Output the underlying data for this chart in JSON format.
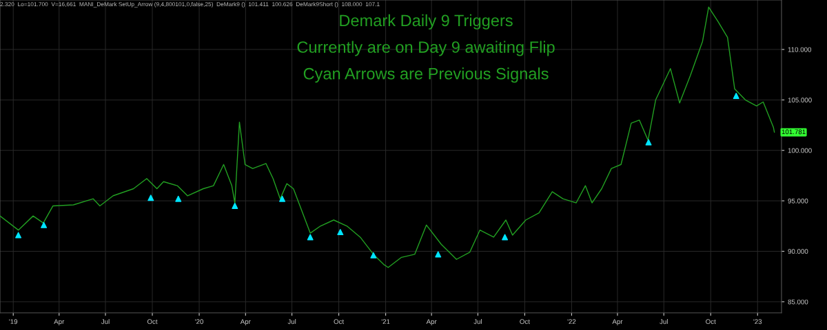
{
  "chart_data": {
    "type": "line",
    "title": "Demark Daily 9 Triggers",
    "annotations": [
      "Currently are on Day 9 awaiting Flip",
      "Cyan Arrows are Previous Signals",
      "2.320  Lo=101.700  V=16,661  MANI_DeMark SetUp_Arrow (9,4,800101,0,false,25)  DeMark9 ()  101.411  100.626  DeMark9Short ()  108.000  107.1",
      {
        "text": "101.781",
        "x": "2023-02-03",
        "y": 101.781
      }
    ],
    "series": [
      {
        "color": "#22a022",
        "x": [
          "2018-12-06",
          "2019-01-11",
          "2019-02-09",
          "2019-03-01",
          "2019-03-20",
          "2019-04-29",
          "2019-06-07",
          "2019-06-20",
          "2019-07-16",
          "2019-08-25",
          "2019-09-20",
          "2019-10-10",
          "2019-10-23",
          "2019-11-19",
          "2019-12-09",
          "2020-01-09",
          "2020-01-29",
          "2020-02-18",
          "2020-03-05",
          "2020-03-11",
          "2020-03-20",
          "2020-03-31",
          "2020-04-15",
          "2020-05-11",
          "2020-05-25",
          "2020-06-08",
          "2020-06-21",
          "2020-07-04",
          "2020-08-06",
          "2020-08-26",
          "2020-09-21",
          "2020-10-17",
          "2020-11-12",
          "2020-12-08",
          "2020-12-28",
          "2021-01-06",
          "2021-02-01",
          "2021-02-27",
          "2021-03-22",
          "2021-04-20",
          "2021-05-20",
          "2021-06-15",
          "2021-07-05",
          "2021-08-01",
          "2021-08-25",
          "2021-09-07",
          "2021-10-03",
          "2021-10-29",
          "2021-11-24",
          "2021-12-15",
          "2022-01-10",
          "2022-01-28",
          "2022-02-10",
          "2022-03-01",
          "2022-03-20",
          "2022-04-08",
          "2022-04-28",
          "2022-05-14",
          "2022-05-31",
          "2022-06-15",
          "2022-07-14",
          "2022-08-01",
          "2022-08-22",
          "2022-09-15",
          "2022-09-27",
          "2022-10-15",
          "2022-11-03",
          "2022-11-17",
          "2022-12-08",
          "2022-12-30",
          "2023-01-12",
          "2023-02-01",
          "2023-02-03"
        ],
        "values": [
          93.5,
          92.1,
          93.5,
          92.8,
          94.5,
          94.6,
          95.2,
          94.5,
          95.5,
          96.2,
          97.2,
          96.2,
          96.9,
          96.5,
          95.5,
          96.2,
          96.5,
          98.6,
          96.5,
          94.8,
          102.8,
          98.6,
          98.2,
          98.7,
          97.2,
          95.2,
          96.7,
          96.2,
          91.8,
          92.5,
          93.1,
          92.5,
          91.4,
          89.7,
          88.7,
          88.4,
          89.4,
          89.7,
          92.6,
          90.7,
          89.2,
          89.9,
          92.1,
          91.4,
          93.1,
          91.6,
          93.1,
          93.8,
          95.9,
          95.2,
          94.8,
          96.5,
          94.8,
          96.2,
          98.2,
          98.6,
          102.7,
          103.0,
          101.0,
          105.0,
          108.1,
          104.7,
          107.4,
          110.8,
          114.2,
          112.8,
          111.2,
          106.1,
          105.0,
          104.4,
          104.8,
          102.3,
          101.8
        ]
      },
      {
        "type": "scatter",
        "color": "#00e5ff",
        "marker": "triangle",
        "x": [
          "2019-01-11",
          "2019-03-02",
          "2019-09-28",
          "2019-11-21",
          "2020-03-11",
          "2020-06-12",
          "2020-08-06",
          "2020-10-04",
          "2020-12-08",
          "2021-04-14",
          "2021-08-23",
          "2022-06-01",
          "2022-11-20"
        ],
        "values": [
          91.6,
          92.6,
          95.3,
          95.2,
          94.5,
          95.2,
          91.4,
          91.9,
          89.6,
          89.7,
          91.4,
          100.8,
          105.4
        ]
      }
    ],
    "xlim": [
      "2018-12-06",
      "2023-02-17"
    ],
    "xticks": [
      {
        "value": "2019-01-01",
        "label": "'19"
      },
      {
        "value": "2019-04-01",
        "label": "Apr"
      },
      {
        "value": "2019-07-01",
        "label": "Jul"
      },
      {
        "value": "2019-10-01",
        "label": "Oct"
      },
      {
        "value": "2020-01-01",
        "label": "'20"
      },
      {
        "value": "2020-04-01",
        "label": "Apr"
      },
      {
        "value": "2020-07-01",
        "label": "Jul"
      },
      {
        "value": "2020-10-01",
        "label": "Oct"
      },
      {
        "value": "2021-01-01",
        "label": "'21"
      },
      {
        "value": "2021-04-01",
        "label": "Apr"
      },
      {
        "value": "2021-07-01",
        "label": "Jul"
      },
      {
        "value": "2021-10-01",
        "label": "Oct"
      },
      {
        "value": "2022-01-01",
        "label": "'22"
      },
      {
        "value": "2022-04-01",
        "label": "Apr"
      },
      {
        "value": "2022-07-01",
        "label": "Jul"
      },
      {
        "value": "2022-10-01",
        "label": "Oct"
      },
      {
        "value": "2023-01-01",
        "label": "'23"
      }
    ],
    "ylim": [
      83.9,
      114.9
    ],
    "yticks": [
      {
        "value": 85,
        "label": "85.000"
      },
      {
        "value": 90,
        "label": "90.000"
      },
      {
        "value": 95,
        "label": "95.000"
      },
      {
        "value": 100,
        "label": "100.000"
      },
      {
        "value": 105,
        "label": "105.000"
      },
      {
        "value": 110,
        "label": "110.000"
      }
    ],
    "grid": true,
    "legend": false
  }
}
